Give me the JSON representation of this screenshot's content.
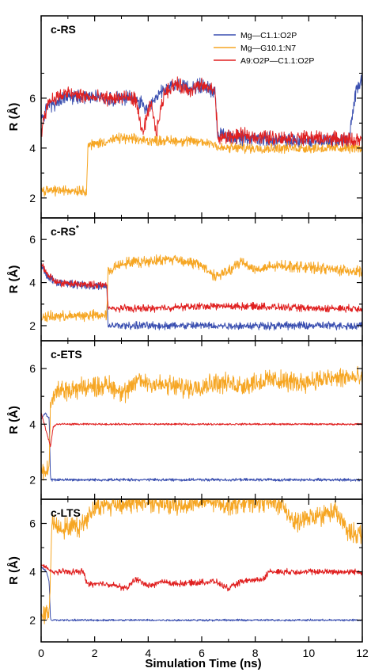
{
  "colors": {
    "blue": "#3a4fb0",
    "orange": "#f6a623",
    "red": "#e02020",
    "axis": "#000000"
  },
  "xlabel": "Simulation Time (ns)",
  "xlim": [
    0,
    12
  ],
  "xticks": [
    "0",
    "2",
    "4",
    "6",
    "8",
    "10",
    "12"
  ],
  "legend": [
    {
      "label": "Mg—C1.1:O2P",
      "color": "#3a4fb0"
    },
    {
      "label": "Mg—G10.1:N7",
      "color": "#f6a623"
    },
    {
      "label": "A9:O2P—C1.1:O2P",
      "color": "#e02020"
    }
  ],
  "chart_data": [
    {
      "type": "line",
      "panel_label": "c-RS",
      "ylabel": "R (Å)",
      "ylim": [
        1.2,
        9.3
      ],
      "yticks": [
        "2",
        "4",
        "6"
      ],
      "series": [
        {
          "name": "Mg—C1.1:O2P",
          "color": "#3a4fb0",
          "noise": 0.35,
          "x": [
            0,
            0.15,
            0.3,
            0.5,
            0.8,
            1.5,
            2.5,
            3.5,
            4.0,
            4.5,
            5.0,
            5.5,
            6.0,
            6.5,
            6.6,
            7.5,
            9,
            10.5,
            11.5,
            11.8,
            12
          ],
          "y": [
            5.2,
            5.4,
            5.8,
            5.7,
            6.0,
            6.1,
            6.0,
            6.0,
            5.5,
            6.3,
            6.5,
            6.4,
            6.5,
            6.3,
            4.5,
            4.4,
            4.3,
            4.3,
            4.3,
            6.5,
            6.8
          ]
        },
        {
          "name": "Mg—G10.1:N7",
          "color": "#f6a623",
          "noise": 0.25,
          "x": [
            0,
            1.7,
            1.75,
            3,
            4,
            5,
            6.5,
            6.6,
            8,
            10,
            12
          ],
          "y": [
            2.3,
            2.3,
            4.1,
            4.4,
            4.3,
            4.3,
            4.2,
            4.0,
            4.0,
            4.0,
            4.0
          ]
        },
        {
          "name": "A9:O2P—C1.1:O2P",
          "color": "#e02020",
          "noise": 0.35,
          "x": [
            0,
            0.1,
            0.3,
            0.5,
            1,
            2,
            3,
            3.5,
            3.8,
            4.1,
            4.3,
            4.6,
            5,
            5.5,
            6,
            6.5,
            6.6,
            7.5,
            9,
            10.5,
            12
          ],
          "y": [
            4.5,
            5.3,
            5.9,
            6.0,
            6.2,
            6.0,
            6.0,
            6.0,
            4.6,
            5.8,
            4.6,
            6.2,
            6.6,
            6.3,
            6.5,
            6.3,
            4.4,
            4.5,
            4.4,
            4.4,
            4.3
          ]
        }
      ]
    },
    {
      "type": "line",
      "panel_label": "c-RS*",
      "ylabel": "R (Å)",
      "ylim": [
        1.3,
        7.0
      ],
      "yticks": [
        "2",
        "4",
        "6"
      ],
      "series": [
        {
          "name": "Mg—C1.1:O2P",
          "color": "#3a4fb0",
          "noise": 0.22,
          "x": [
            0,
            0.2,
            0.6,
            1.5,
            2.45,
            2.5,
            4,
            6,
            8,
            10,
            12
          ],
          "y": [
            4.8,
            4.3,
            4.0,
            3.9,
            3.8,
            2.0,
            2.0,
            2.0,
            2.0,
            2.0,
            2.0
          ]
        },
        {
          "name": "Mg—G10.1:N7",
          "color": "#f6a623",
          "noise": 0.3,
          "x": [
            0,
            2.45,
            2.5,
            3,
            4,
            5,
            6,
            6.5,
            7,
            7.5,
            8,
            9,
            10,
            11,
            12
          ],
          "y": [
            2.4,
            2.5,
            4.5,
            4.9,
            5.0,
            5.1,
            4.8,
            4.3,
            4.5,
            5.0,
            4.6,
            4.8,
            4.7,
            4.6,
            4.5
          ]
        },
        {
          "name": "A9:O2P—C1.1:O2P",
          "color": "#e02020",
          "noise": 0.2,
          "x": [
            0,
            0.2,
            0.6,
            1.5,
            2.45,
            2.5,
            4,
            6,
            8,
            10,
            12
          ],
          "y": [
            4.9,
            4.4,
            4.0,
            3.9,
            3.9,
            2.8,
            2.8,
            2.9,
            2.9,
            2.8,
            2.8
          ]
        }
      ]
    },
    {
      "type": "line",
      "panel_label": "c-ETS",
      "ylabel": "R (Å)",
      "ylim": [
        1.3,
        7.0
      ],
      "yticks": [
        "2",
        "4",
        "6"
      ],
      "series": [
        {
          "name": "Mg—C1.1:O2P",
          "color": "#3a4fb0",
          "noise": 0.06,
          "x": [
            0,
            0.15,
            0.3,
            0.35,
            2,
            4,
            6,
            8,
            10,
            12
          ],
          "y": [
            4.2,
            4.4,
            4.2,
            2.0,
            2.0,
            2.0,
            2.0,
            2.0,
            2.0,
            2.0
          ]
        },
        {
          "name": "Mg—G10.1:N7",
          "color": "#f6a623",
          "noise": 0.45,
          "x": [
            0,
            0.3,
            0.35,
            0.6,
            1.5,
            2.5,
            3.2,
            3.6,
            4.5,
            5.5,
            6.5,
            7.5,
            8.5,
            9.5,
            10.5,
            11.5,
            12
          ],
          "y": [
            2.3,
            2.3,
            4.8,
            5.2,
            5.3,
            5.4,
            5.1,
            5.6,
            5.4,
            5.3,
            5.5,
            5.4,
            5.6,
            5.5,
            5.6,
            5.7,
            5.6
          ]
        },
        {
          "name": "A9:O2P—C1.1:O2P",
          "color": "#e02020",
          "noise": 0.04,
          "x": [
            0,
            0.35,
            0.45,
            0.6,
            2,
            4,
            6,
            8,
            10,
            12
          ],
          "y": [
            4.4,
            3.2,
            3.9,
            4.0,
            4.0,
            4.0,
            4.0,
            4.0,
            4.0,
            4.0
          ]
        }
      ]
    },
    {
      "type": "line",
      "panel_label": "c-LTS",
      "ylabel": "R (Å)",
      "ylim": [
        1.1,
        7.0
      ],
      "yticks": [
        "2",
        "4",
        "6"
      ],
      "series": [
        {
          "name": "Mg—C1.1:O2P",
          "color": "#3a4fb0",
          "noise": 0.05,
          "x": [
            0,
            0.2,
            0.3,
            0.35,
            2,
            4,
            6,
            8,
            10,
            12
          ],
          "y": [
            4.2,
            4.0,
            3.6,
            2.0,
            2.0,
            2.0,
            2.0,
            2.0,
            2.0,
            2.0
          ]
        },
        {
          "name": "Mg—G10.1:N7",
          "color": "#f6a623",
          "noise": 0.5,
          "x": [
            0,
            0.3,
            0.4,
            0.8,
            1.5,
            2,
            3,
            4,
            5,
            6,
            7,
            8,
            9,
            9.5,
            10,
            11,
            11.5,
            12
          ],
          "y": [
            2.2,
            2.3,
            6.0,
            5.8,
            5.9,
            6.7,
            6.8,
            6.9,
            6.7,
            6.9,
            6.8,
            6.9,
            6.8,
            6.0,
            6.2,
            6.5,
            5.6,
            5.6
          ]
        },
        {
          "name": "A9:O2P—C1.1:O2P",
          "color": "#e02020",
          "noise": 0.15,
          "x": [
            0,
            0.4,
            1.6,
            1.7,
            2.5,
            3.2,
            3.5,
            4.1,
            4.5,
            5.0,
            6.5,
            7.0,
            7.5,
            8.3,
            8.5,
            10,
            12
          ],
          "y": [
            4.3,
            4.0,
            4.0,
            3.5,
            3.5,
            3.3,
            3.7,
            3.4,
            3.6,
            3.5,
            3.6,
            3.3,
            3.6,
            3.7,
            4.0,
            4.0,
            4.0
          ]
        }
      ]
    }
  ]
}
